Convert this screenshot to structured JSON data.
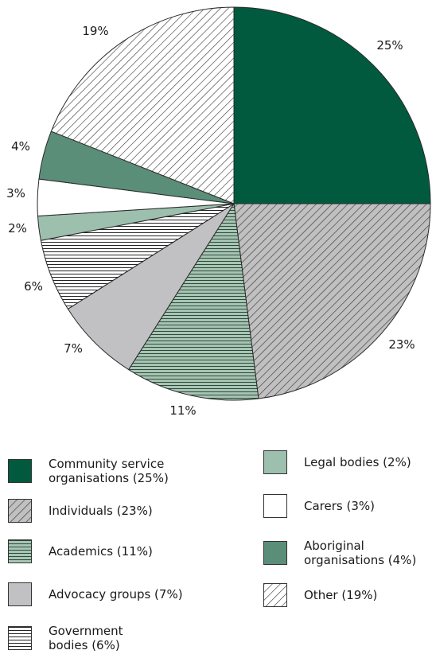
{
  "chart_data": {
    "type": "pie",
    "slices": [
      {
        "label": "Community service organisations",
        "value": 25,
        "pct_label": "25%",
        "legend": "Community service\norganisations (25%)",
        "fill": "#025a3e",
        "pattern": "solid"
      },
      {
        "label": "Individuals",
        "value": 23,
        "pct_label": "23%",
        "legend": "Individuals (23%)",
        "fill": "#c0c0c0",
        "pattern": "diagonal"
      },
      {
        "label": "Academics",
        "value": 11,
        "pct_label": "11%",
        "legend": "Academics (11%)",
        "fill": "#a7c5b3",
        "pattern": "horizontal"
      },
      {
        "label": "Advocacy groups",
        "value": 7,
        "pct_label": "7%",
        "legend": "Advocacy groups (7%)",
        "fill": "#c1c1c3",
        "pattern": "solid"
      },
      {
        "label": "Government bodies",
        "value": 6,
        "pct_label": "6%",
        "legend": "Government\nbodies (6%)",
        "fill": "#ffffff",
        "pattern": "horizontal"
      },
      {
        "label": "Legal bodies",
        "value": 2,
        "pct_label": "2%",
        "legend": "Legal bodies (2%)",
        "fill": "#9dbfae",
        "pattern": "solid"
      },
      {
        "label": "Carers",
        "value": 3,
        "pct_label": "3%",
        "legend": "Carers (3%)",
        "fill": "#ffffff",
        "pattern": "solid"
      },
      {
        "label": "Aboriginal organisations",
        "value": 4,
        "pct_label": "4%",
        "legend": "Aboriginal\norganisations (4%)",
        "fill": "#5a8e78",
        "pattern": "solid"
      },
      {
        "label": "Other",
        "value": 19,
        "pct_label": "19%",
        "legend": "Other (19%)",
        "fill": "#ffffff",
        "pattern": "diagonal"
      }
    ],
    "start_angle": "12 o'clock",
    "direction": "clockwise",
    "legend_position": "bottom"
  }
}
